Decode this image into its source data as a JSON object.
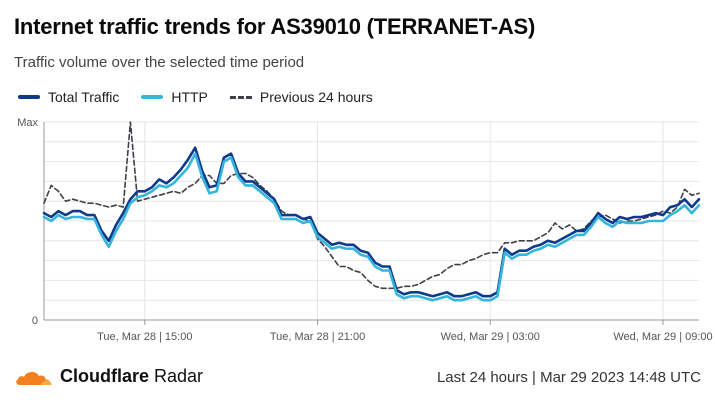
{
  "header": {
    "title": "Internet traffic trends for AS39010 (TERRANET-AS)",
    "subtitle": "Traffic volume over the selected time period"
  },
  "footer": {
    "brand_bold": "Cloudflare",
    "brand_rest": " Radar",
    "range_info": "Last 24 hours | Mar 29 2023 14:48 UTC"
  },
  "colors": {
    "total": "#0d3a8c",
    "http": "#35b4dc",
    "previous": "#3d4048",
    "grid": "#e6e6e6",
    "logo": "#f38020"
  },
  "chart_data": {
    "type": "line",
    "legend_position": "top-left",
    "grid": true,
    "y_tick_labels": [
      "Max",
      "0"
    ],
    "ylim": [
      0,
      100
    ],
    "x_tick_labels": [
      "Tue, Mar 28 | 15:00",
      "Tue, Mar 28 | 21:00",
      "Wed, Mar 29 | 03:00",
      "Wed, Mar 29 | 09:00"
    ],
    "series": [
      {
        "name": "Total Traffic",
        "key": "total",
        "style": "solid",
        "values": [
          54,
          52,
          55,
          53,
          55,
          55,
          53,
          53,
          45,
          40,
          48,
          54,
          61,
          65,
          65,
          67,
          71,
          69,
          72,
          76,
          81,
          87,
          75,
          67,
          68,
          82,
          84,
          74,
          70,
          70,
          67,
          64,
          61,
          53,
          53,
          53,
          51,
          52,
          44,
          41,
          38,
          39,
          38,
          38,
          35,
          34,
          29,
          27,
          27,
          15,
          13,
          14,
          14,
          13,
          12,
          13,
          14,
          12,
          12,
          13,
          14,
          12,
          12,
          14,
          36,
          33,
          35,
          35,
          37,
          38,
          40,
          39,
          41,
          43,
          45,
          45,
          49,
          54,
          51,
          49,
          52,
          51,
          52,
          52,
          53,
          54,
          53,
          57,
          58,
          61,
          57,
          61
        ]
      },
      {
        "name": "HTTP",
        "key": "http",
        "style": "solid",
        "values": [
          52,
          50,
          53,
          51,
          52,
          52,
          51,
          51,
          43,
          37,
          45,
          51,
          59,
          62,
          63,
          65,
          68,
          67,
          69,
          73,
          77,
          84,
          72,
          64,
          65,
          80,
          82,
          72,
          68,
          68,
          65,
          62,
          59,
          51,
          51,
          51,
          49,
          50,
          42,
          39,
          36,
          37,
          36,
          36,
          33,
          32,
          27,
          25,
          25,
          13,
          11,
          12,
          12,
          11,
          10,
          11,
          12,
          10,
          10,
          11,
          12,
          10,
          10,
          12,
          34,
          31,
          33,
          33,
          35,
          36,
          38,
          37,
          39,
          41,
          43,
          43,
          47,
          52,
          49,
          47,
          50,
          49,
          49,
          49,
          50,
          50,
          50,
          53,
          55,
          58,
          54,
          58
        ]
      },
      {
        "name": "Previous 24 hours",
        "key": "previous",
        "style": "dashed",
        "values": [
          59,
          68,
          65,
          60,
          61,
          60,
          59,
          59,
          58,
          57,
          58,
          57,
          100,
          60,
          61,
          62,
          63,
          64,
          65,
          64,
          67,
          69,
          73,
          73,
          69,
          69,
          73,
          74,
          74,
          72,
          68,
          65,
          61,
          55,
          53,
          53,
          51,
          50,
          41,
          37,
          32,
          27,
          27,
          25,
          24,
          20,
          17,
          16,
          16,
          16,
          17,
          17,
          18,
          20,
          22,
          23,
          26,
          28,
          28,
          30,
          31,
          33,
          34,
          34,
          39,
          39,
          40,
          40,
          40,
          42,
          44,
          49,
          46,
          48,
          45,
          46,
          50,
          52,
          53,
          51,
          49,
          50,
          50,
          51,
          52,
          53,
          55,
          54,
          57,
          66,
          63,
          64
        ]
      }
    ]
  }
}
